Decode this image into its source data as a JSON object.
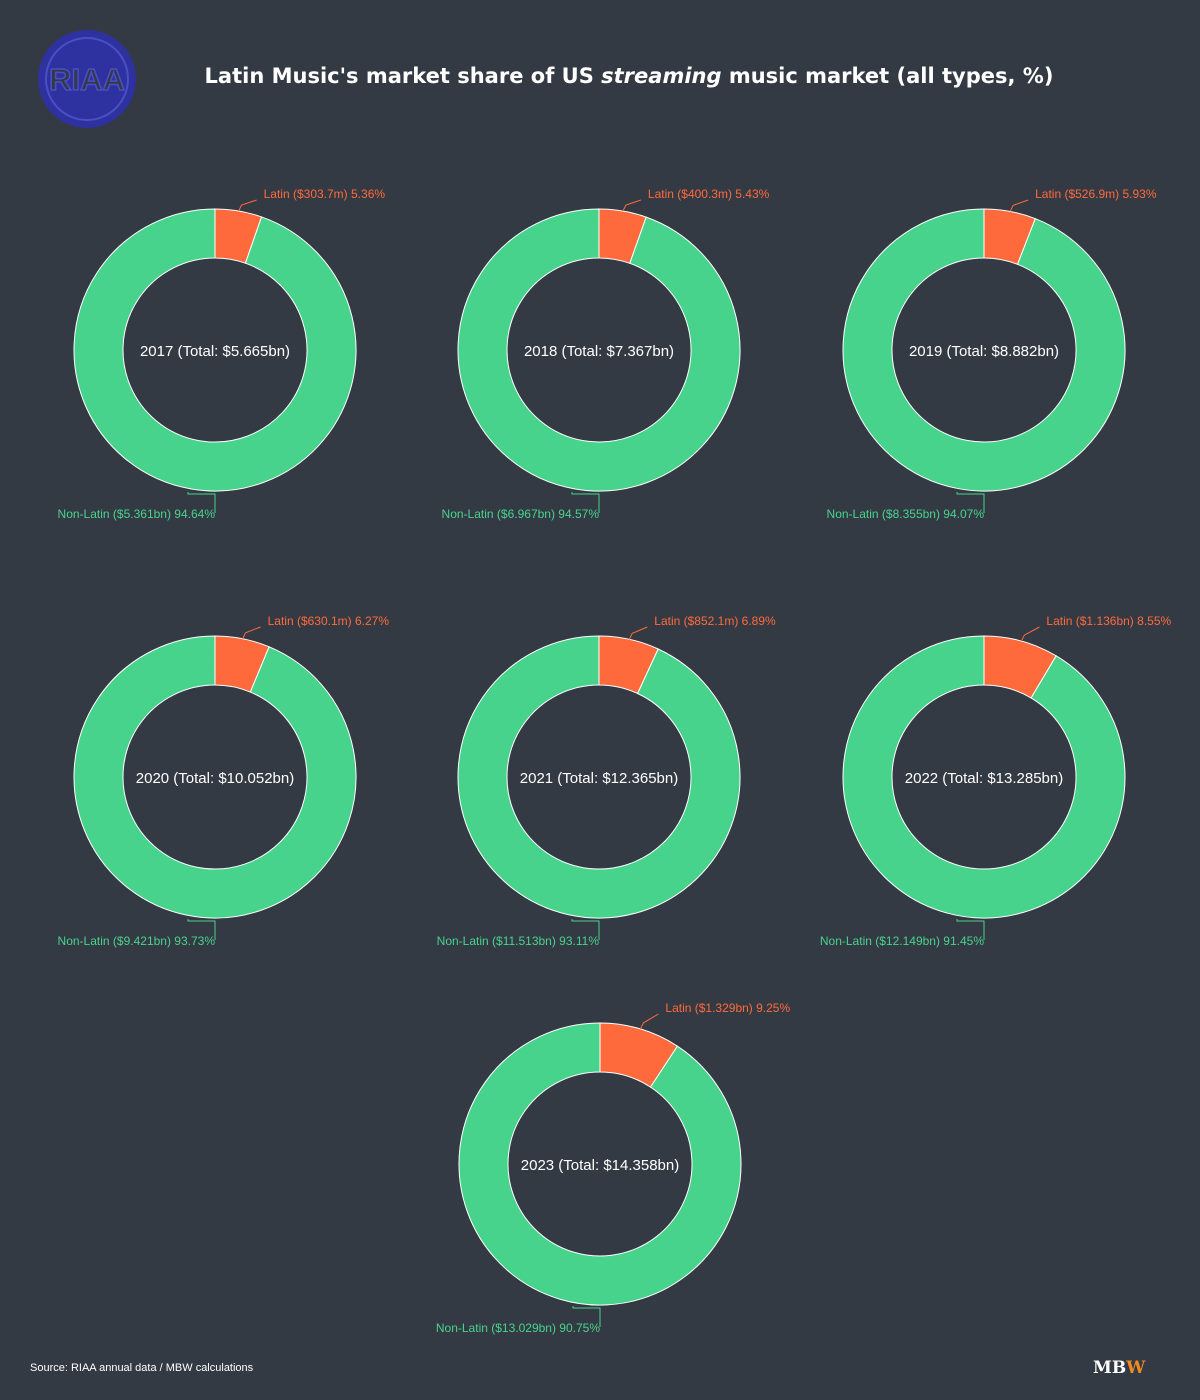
{
  "title": {
    "prefix": "Latin Music's market share of US ",
    "emphasis": "streaming",
    "suffix": " music market (all types, %)"
  },
  "logo": {
    "text": "RIAA",
    "color": "#2e31a0"
  },
  "source": "Source: RIAA annual data / MBW calculations",
  "brand": {
    "mb": "MB",
    "w": "W"
  },
  "colors": {
    "latin": "#ff6a3d",
    "non_latin": "#48d38d",
    "background": "#343a43"
  },
  "chart_data": [
    {
      "type": "pie",
      "center_label": "2017 (Total: $5.665bn)",
      "slices": [
        {
          "name": "Latin",
          "amount": "$303.7m",
          "share": 5.36,
          "label": "Latin ($303.7m) 5.36%"
        },
        {
          "name": "Non-Latin",
          "amount": "$5.361bn",
          "share": 94.64,
          "label": "Non-Latin ($5.361bn) 94.64%"
        }
      ]
    },
    {
      "type": "pie",
      "center_label": "2018 (Total: $7.367bn)",
      "slices": [
        {
          "name": "Latin",
          "amount": "$400.3m",
          "share": 5.43,
          "label": "Latin ($400.3m) 5.43%"
        },
        {
          "name": "Non-Latin",
          "amount": "$6.967bn",
          "share": 94.57,
          "label": "Non-Latin ($6.967bn) 94.57%"
        }
      ]
    },
    {
      "type": "pie",
      "center_label": "2019 (Total: $8.882bn)",
      "slices": [
        {
          "name": "Latin",
          "amount": "$526.9m",
          "share": 5.93,
          "label": "Latin ($526.9m) 5.93%"
        },
        {
          "name": "Non-Latin",
          "amount": "$8.355bn",
          "share": 94.07,
          "label": "Non-Latin ($8.355bn) 94.07%"
        }
      ]
    },
    {
      "type": "pie",
      "center_label": "2020 (Total: $10.052bn)",
      "slices": [
        {
          "name": "Latin",
          "amount": "$630.1m",
          "share": 6.27,
          "label": "Latin ($630.1m) 6.27%"
        },
        {
          "name": "Non-Latin",
          "amount": "$9.421bn",
          "share": 93.73,
          "label": "Non-Latin ($9.421bn) 93.73%"
        }
      ]
    },
    {
      "type": "pie",
      "center_label": "2021 (Total: $12.365bn)",
      "slices": [
        {
          "name": "Latin",
          "amount": "$852.1m",
          "share": 6.89,
          "label": "Latin ($852.1m) 6.89%"
        },
        {
          "name": "Non-Latin",
          "amount": "$11.513bn",
          "share": 93.11,
          "label": "Non-Latin ($11.513bn) 93.11%"
        }
      ]
    },
    {
      "type": "pie",
      "center_label": "2022 (Total: $13.285bn)",
      "slices": [
        {
          "name": "Latin",
          "amount": "$1.136bn",
          "share": 8.55,
          "label": "Latin ($1.136bn) 8.55%"
        },
        {
          "name": "Non-Latin",
          "amount": "$12.149bn",
          "share": 91.45,
          "label": "Non-Latin ($12.149bn) 91.45%"
        }
      ]
    },
    {
      "type": "pie",
      "center_label": "2023 (Total: $14.358bn)",
      "slices": [
        {
          "name": "Latin",
          "amount": "$1.329bn",
          "share": 9.25,
          "label": "Latin ($1.329bn) 9.25%"
        },
        {
          "name": "Non-Latin",
          "amount": "$13.029bn",
          "share": 90.75,
          "label": "Non-Latin ($13.029bn) 90.75%"
        }
      ]
    }
  ]
}
